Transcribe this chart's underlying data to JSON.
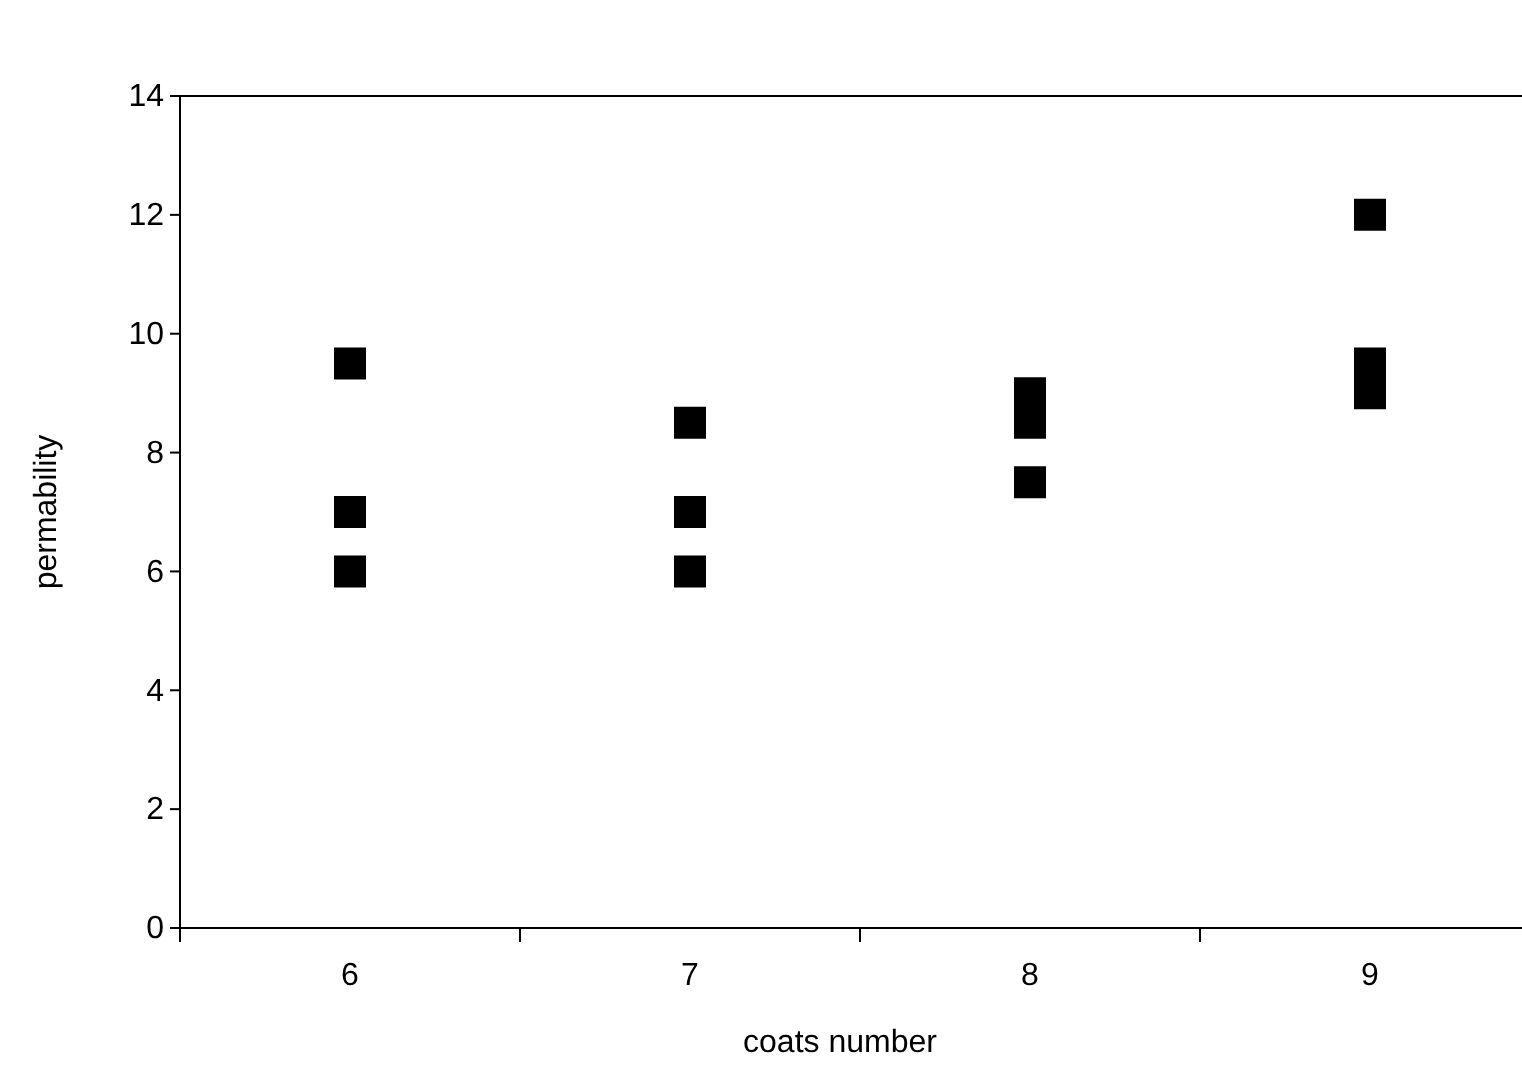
{
  "chart_data": {
    "type": "scatter",
    "xlabel": "coats number",
    "ylabel": "permability",
    "categories": [
      "6",
      "7",
      "8",
      "9"
    ],
    "series": [
      {
        "color": "#000000",
        "x": [
          "6",
          "6",
          "6",
          "7",
          "7",
          "7",
          "8",
          "8",
          "8",
          "9",
          "9",
          "9"
        ],
        "values": [
          9.5,
          7,
          6,
          8.5,
          7,
          6,
          9,
          8.5,
          7.5,
          12,
          9.5,
          9
        ]
      }
    ],
    "ylim": [
      0,
      14
    ],
    "yticks": [
      0,
      2,
      4,
      6,
      8,
      10,
      12,
      14
    ],
    "grid": false,
    "marker": "square"
  }
}
